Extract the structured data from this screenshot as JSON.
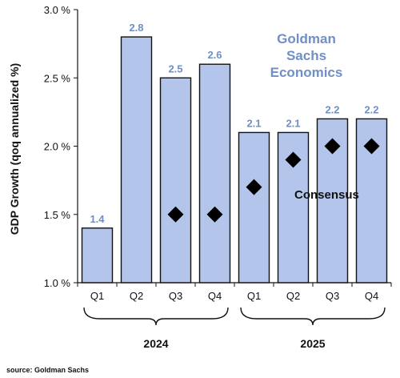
{
  "chart_data": {
    "type": "bar",
    "categories": [
      "Q1",
      "Q2",
      "Q3",
      "Q4",
      "Q1",
      "Q2",
      "Q3",
      "Q4"
    ],
    "series": [
      {
        "values": [
          1.4,
          2.8,
          2.5,
          2.6,
          2.1,
          2.1,
          2.2,
          2.2
        ]
      },
      {
        "name": "Consensus",
        "values": [
          null,
          null,
          1.5,
          1.5,
          1.7,
          1.9,
          2.0,
          2.0
        ]
      }
    ],
    "data_labels": [
      "1.4",
      "2.8",
      "2.5",
      "2.6",
      "2.1",
      "2.1",
      "2.2",
      "2.2"
    ],
    "year_groups": [
      {
        "label": "2024",
        "categories": [
          0,
          1,
          2,
          3
        ]
      },
      {
        "label": "2025",
        "categories": [
          4,
          5,
          6,
          7
        ]
      }
    ],
    "ylabel": "GDP Growth (qoq annualized %)",
    "ylim": [
      1.0,
      3.0
    ],
    "yticks": [
      "1.0 %",
      "1.5 %",
      "2.0 %",
      "2.5 %",
      "3.0 %"
    ],
    "annotation_lines": [
      "Goldman",
      "Sachs",
      "Economics"
    ],
    "consensus_label": "Consensus",
    "grid": false,
    "colors": {
      "bar_fill": "#b3c5ea",
      "bar_stroke": "#111111",
      "label": "#6f8fc6",
      "marker": "#000000"
    }
  },
  "source": "source: Goldman Sachs"
}
